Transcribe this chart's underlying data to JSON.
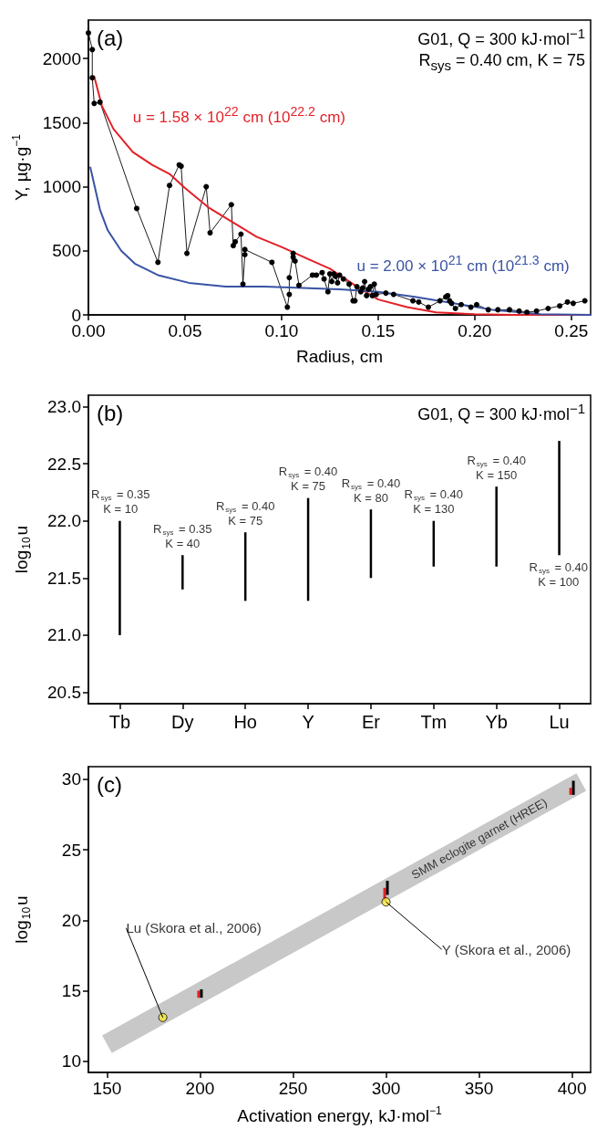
{
  "chart_data": [
    {
      "type": "line",
      "title": "(a)",
      "subtitle": "G01, Q = 300 kJ·mol$^{−1}$\nR$_{sys}$ = 0.40 cm, K = 75",
      "xlabel": "Radius, cm",
      "ylabel": "Y, µg·g$^{−1}$",
      "xlim": [
        0,
        0.26
      ],
      "ylim": [
        0,
        2300
      ],
      "xticks": [
        {
          "value": 0,
          "label": "0.00"
        },
        {
          "value": 0.05,
          "label": "0.05"
        },
        {
          "value": 0.1,
          "label": "0.10"
        },
        {
          "value": 0.15,
          "label": "0.15"
        },
        {
          "value": 0.2,
          "label": "0.20"
        },
        {
          "value": 0.25,
          "label": "0.25"
        }
      ],
      "yticks": [
        0,
        500,
        1000,
        1500,
        2000
      ],
      "grid": false,
      "line_style": "solid",
      "series": [
        {
          "color": "#000000",
          "marker": "circle",
          "x": [
            0,
            0.002,
            0.002,
            0.003,
            0.006,
            0.025,
            0.036,
            0.042,
            0.047,
            0.048,
            0.051,
            0.061,
            0.063,
            0.074,
            0.075,
            0.076,
            0.079,
            0.08,
            0.081,
            0.081,
            0.095,
            0.103,
            0.104,
            0.104,
            0.106,
            0.106,
            0.107,
            0.109,
            0.116,
            0.118,
            0.121,
            0.122,
            0.124,
            0.125,
            0.126,
            0.127,
            0.128,
            0.129,
            0.13,
            0.132,
            0.135,
            0.137,
            0.138,
            0.139,
            0.141,
            0.142,
            0.143,
            0.144,
            0.145,
            0.146,
            0.147,
            0.148,
            0.149,
            0.154,
            0.158,
            0.168,
            0.171,
            0.176,
            0.182,
            0.185,
            0.186,
            0.187,
            0.188,
            0.19,
            0.193,
            0.198,
            0.201,
            0.207,
            0.212,
            0.218,
            0.223,
            0.227,
            0.232,
            0.238,
            0.244,
            0.248,
            0.251,
            0.257
          ],
          "values": [
            2200,
            2070,
            1850,
            1650,
            1660,
            830,
            410,
            1010,
            1170,
            1160,
            480,
            1000,
            640,
            860,
            540,
            570,
            630,
            240,
            470,
            510,
            410,
            60,
            160,
            290,
            480,
            450,
            420,
            230,
            310,
            310,
            330,
            280,
            180,
            320,
            260,
            320,
            300,
            250,
            310,
            280,
            240,
            110,
            110,
            220,
            180,
            210,
            260,
            150,
            200,
            220,
            150,
            240,
            160,
            170,
            160,
            110,
            100,
            60,
            110,
            140,
            150,
            110,
            90,
            50,
            80,
            60,
            80,
            40,
            40,
            40,
            30,
            20,
            30,
            50,
            70,
            100,
            90,
            110
          ]
        },
        {
          "name": "u = 1.58 × 10$^{22}$ cm (10$^{22.2}$ cm)",
          "color": "#e41f26",
          "marker": "none",
          "x": [
            0.003,
            0.007,
            0.013,
            0.023,
            0.033,
            0.042,
            0.05,
            0.062,
            0.075,
            0.087,
            0.1,
            0.113,
            0.125,
            0.138,
            0.15,
            0.165,
            0.18,
            0.2,
            0.22,
            0.26
          ],
          "values": [
            1860,
            1630,
            1450,
            1270,
            1170,
            1100,
            990,
            840,
            720,
            610,
            530,
            440,
            360,
            230,
            120,
            60,
            20,
            5,
            0,
            0
          ]
        },
        {
          "name": "u = 2.00 × 10$^{21}$ cm (10$^{21.3}$ cm)",
          "color": "#3953a4",
          "marker": "none",
          "x": [
            0.001,
            0.006,
            0.01,
            0.017,
            0.024,
            0.036,
            0.052,
            0.071,
            0.091,
            0.111,
            0.13,
            0.15,
            0.169,
            0.189,
            0.209,
            0.224,
            0.234,
            0.26
          ],
          "values": [
            1150,
            820,
            660,
            500,
            400,
            310,
            250,
            220,
            220,
            210,
            200,
            180,
            140,
            90,
            40,
            20,
            5,
            0
          ]
        }
      ]
    },
    {
      "type": "bar",
      "title": "(b)",
      "subtitle": "G01, Q = 300 kJ·mol$^{−1}$",
      "ylabel": "log$_{10}$u",
      "categories": [
        "Tb",
        "Dy",
        "Ho",
        "Y",
        "Er",
        "Tm",
        "Yb",
        "Lu"
      ],
      "base": [
        21.0,
        21.4,
        21.3,
        21.3,
        21.5,
        21.6,
        21.6,
        21.7
      ],
      "values": [
        1.0,
        0.3,
        0.6,
        0.9,
        0.6,
        0.4,
        0.7,
        1.0
      ],
      "color": "#000000",
      "ylim": [
        20.4,
        23.1
      ],
      "yticks": [
        {
          "value": 20.5,
          "label": "20.5"
        },
        {
          "value": 21,
          "label": "21.0"
        },
        {
          "value": 21.5,
          "label": "21.5"
        },
        {
          "value": 22,
          "label": "22.0"
        },
        {
          "value": 22.5,
          "label": "22.5"
        },
        {
          "value": 23,
          "label": "23.0"
        }
      ],
      "grid": false,
      "annotations": [
        {
          "text": "R$_{sys}$ = 0.35\nK = 10",
          "x": "Tb",
          "y": 22.0
        },
        {
          "text": "R$_{sys}$ = 0.35\nK = 40",
          "x": "Dy",
          "y": 21.7
        },
        {
          "text": "R$_{sys}$ = 0.40\nK = 75",
          "x": "Ho",
          "y": 21.9
        },
        {
          "text": "R$_{sys}$ = 0.40\nK = 75",
          "x": "Y",
          "y": 22.2
        },
        {
          "text": "R$_{sys}$ = 0.40\nK = 80",
          "x": "Er",
          "y": 22.1
        },
        {
          "text": "R$_{sys}$ = 0.40\nK = 130",
          "x": "Tm",
          "y": 22.0
        },
        {
          "text": "R$_{sys}$ = 0.40\nK = 150",
          "x": "Yb",
          "y": 22.3
        },
        {
          "text": "R$_{sys}$ = 0.40\nK = 100",
          "x": "Lu",
          "y": 21.7
        }
      ]
    },
    {
      "type": "line",
      "title": "(c)",
      "xlabel": "Activation energy, kJ·mol$^{−1}$",
      "ylabel": "log$_{10}$u",
      "xlim": [
        140,
        410
      ],
      "ylim": [
        9.2,
        30.9
      ],
      "xticks": [
        150,
        200,
        250,
        300,
        350,
        400
      ],
      "yticks": [
        10,
        15,
        20,
        25,
        30
      ],
      "grid": false,
      "series": [
        {
          "name": "SMM eclogite garnet (HREE)",
          "color": "#c8c8c8",
          "marker": "none",
          "x": [
            150,
            350,
            405
          ],
          "values": [
            11.2,
            25.8,
            29.8
          ]
        },
        {
          "type": "bar",
          "color": "#e41f26",
          "x": [
            200,
            300,
            400
          ],
          "base": [
            14.5,
            21.4,
            28.9
          ],
          "values": [
            0.5,
            0.9,
            0.5
          ]
        },
        {
          "type": "bar",
          "color": "#000000",
          "x": [
            200,
            300,
            400
          ],
          "base": [
            14.5,
            21.8,
            28.9
          ],
          "values": [
            0.6,
            1.0,
            1.0
          ]
        },
        {
          "type": "scatter",
          "color": "#f5e83a",
          "marker": "circle",
          "x": [
            180,
            300
          ],
          "values": [
            13.1,
            21.3
          ]
        }
      ],
      "annotations": [
        {
          "text": "Lu (Skora et al., 2006)",
          "x": 180,
          "y": 13.1
        },
        {
          "text": "Y (Skora et al., 2006)",
          "x": 300,
          "y": 21.3
        }
      ]
    }
  ]
}
